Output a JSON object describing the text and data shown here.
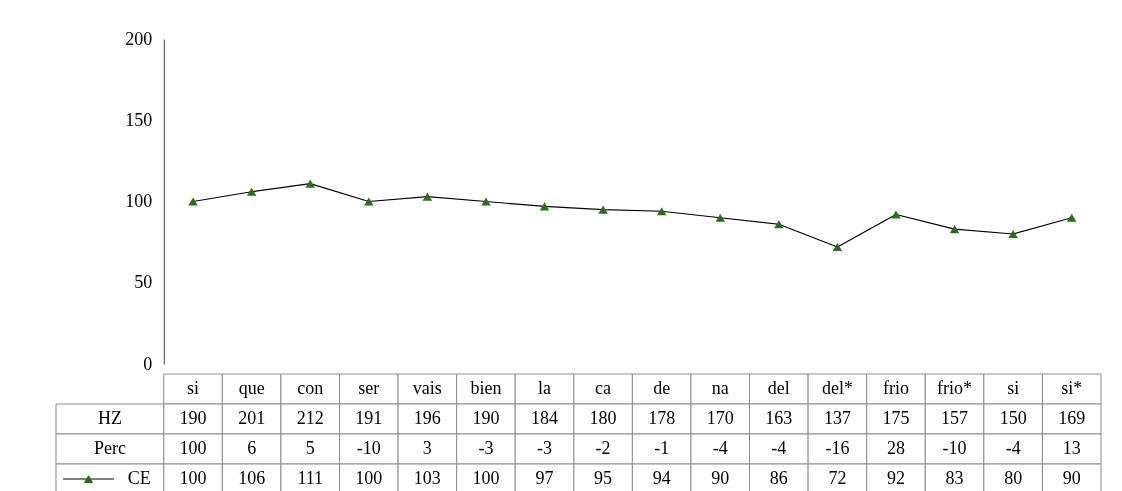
{
  "chart_data": {
    "type": "line",
    "categories": [
      "si",
      "que",
      "con",
      "ser",
      "vais",
      "bien",
      "la",
      "ca",
      "de",
      "na",
      "del",
      "del*",
      "frio",
      "frio*",
      "si",
      "si*"
    ],
    "series": [
      {
        "name": "CE",
        "color": "#2e6b1e",
        "values": [
          100,
          106,
          111,
          100,
          103,
          100,
          97,
          95,
          94,
          90,
          86,
          72,
          92,
          83,
          80,
          90
        ]
      }
    ],
    "annotations": [
      "HZ",
      "190",
      "201",
      "212",
      "191",
      "196",
      "190",
      "184",
      "180",
      "178",
      "170",
      "163",
      "137",
      "175",
      "157",
      "150",
      "169",
      "Perc",
      "100",
      "6",
      "5",
      "-10",
      "3",
      "-3",
      "-3",
      "-2",
      "-1",
      "-4",
      "-4",
      "-16",
      "28",
      "-10",
      "-4",
      "13"
    ],
    "ylim": [
      0,
      200
    ],
    "yticks": [
      0,
      50,
      100,
      150,
      200
    ],
    "grid": false,
    "marker": "triangle",
    "line_style": "solid",
    "data_labels": true,
    "legend": "bottom left"
  }
}
